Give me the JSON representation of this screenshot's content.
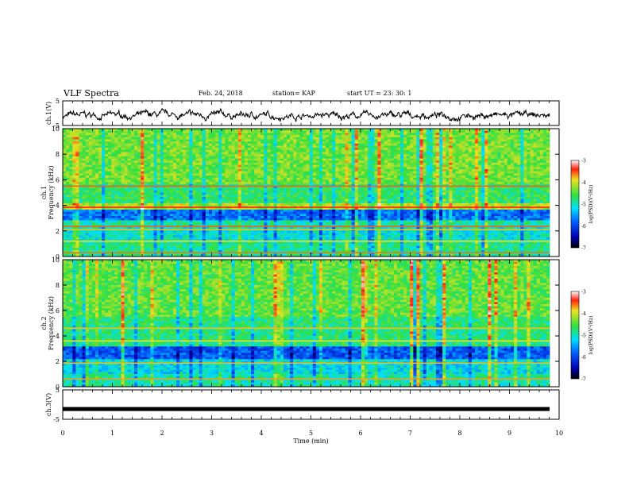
{
  "header": {
    "title": "VLF Spectra",
    "date": "Feb. 24, 2018",
    "station": "station= KAP",
    "start": "start UT =  23: 30: 1"
  },
  "chart_data": [
    {
      "type": "line",
      "ylabel": "ch.1(V)",
      "ylim": [
        -5,
        5
      ],
      "yticks": [
        "5",
        "-5"
      ],
      "xlim": [
        0,
        10
      ],
      "note": "noisy waveform oscillating roughly between -3 and 1 V around -1 V"
    },
    {
      "type": "heatmap",
      "ylabel_top": "ch.1",
      "ylabel": "Frequency (kHz)",
      "ylim": [
        0,
        10
      ],
      "yticks": [
        "0",
        "2",
        "4",
        "6",
        "8",
        "10"
      ],
      "xlim": [
        0,
        9.83
      ],
      "colorbar": {
        "label": "log(PSD)(V²/Hz)",
        "ticks": [
          "-3",
          "-4",
          "-5",
          "-6",
          "-7"
        ],
        "range": [
          -7,
          -3
        ]
      }
    },
    {
      "type": "heatmap",
      "ylabel_top": "ch.2",
      "ylabel": "Frequency (kHz)",
      "ylim": [
        0,
        10
      ],
      "yticks": [
        "0",
        "2",
        "4",
        "6",
        "8",
        "10"
      ],
      "xlim": [
        0,
        9.83
      ],
      "colorbar": {
        "label": "log(PSD)(V²/Hz)",
        "ticks": [
          "-3",
          "-4",
          "-5",
          "-6",
          "-7"
        ],
        "range": [
          -7,
          -3
        ]
      }
    },
    {
      "type": "line",
      "ylabel": "ch.3(V)",
      "ylim": [
        -5,
        5
      ],
      "yticks": [
        "5",
        "-5"
      ],
      "xlim": [
        0,
        10
      ],
      "values_constant": -1.5,
      "xlabel": "Time (min)",
      "xticks": [
        "0",
        "1",
        "2",
        "3",
        "4",
        "5",
        "6",
        "7",
        "8",
        "9",
        "10"
      ]
    }
  ],
  "colors": {
    "axis": "#000000",
    "trace": "#000000"
  }
}
